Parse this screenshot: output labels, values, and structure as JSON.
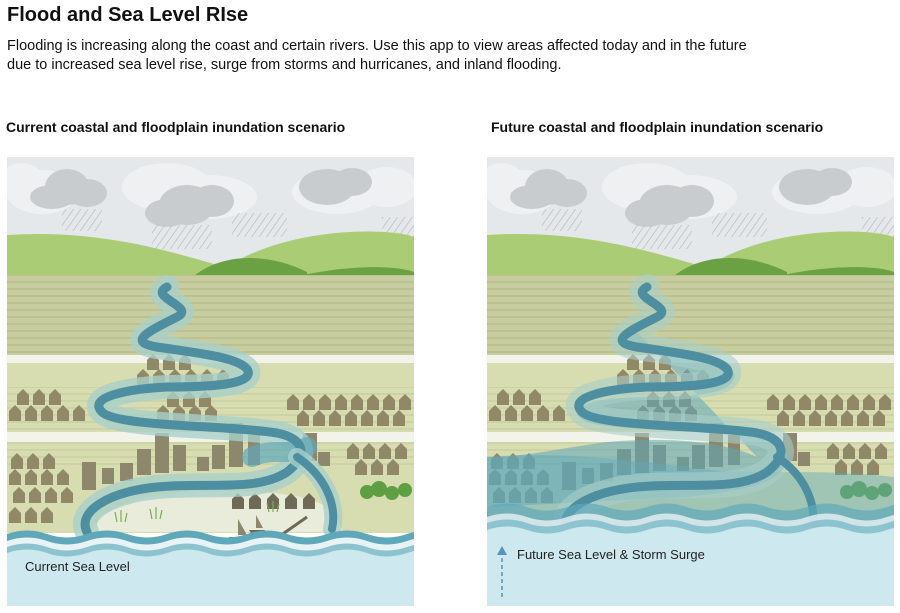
{
  "page": {
    "title": "Flood and Sea Level RIse",
    "description_lines": [
      "Flooding is increasing along the coast and certain rivers.  Use this app to view areas affected today and in the future",
      "due to increased sea level rise, surge from storms and hurricanes, and inland flooding."
    ]
  },
  "panels": {
    "current": {
      "heading": "Current coastal and floodplain inundation scenario",
      "sea_label": "Current Sea Level"
    },
    "future": {
      "heading": "Future coastal and floodplain inundation scenario",
      "sea_label": "Future Sea Level & Storm Surge"
    }
  },
  "colors": {
    "sky": "#e4e8ea",
    "cloud": "#c9ccce",
    "hill_light": "#a9cc75",
    "hill_dark": "#6aa243",
    "field": "#c7cd9e",
    "land": "#d7dcb1",
    "river": "#4d8ea0",
    "flood": "#5fa8ba",
    "sea": "#cde8ee",
    "building": "#8d876c",
    "house": "#918868"
  }
}
